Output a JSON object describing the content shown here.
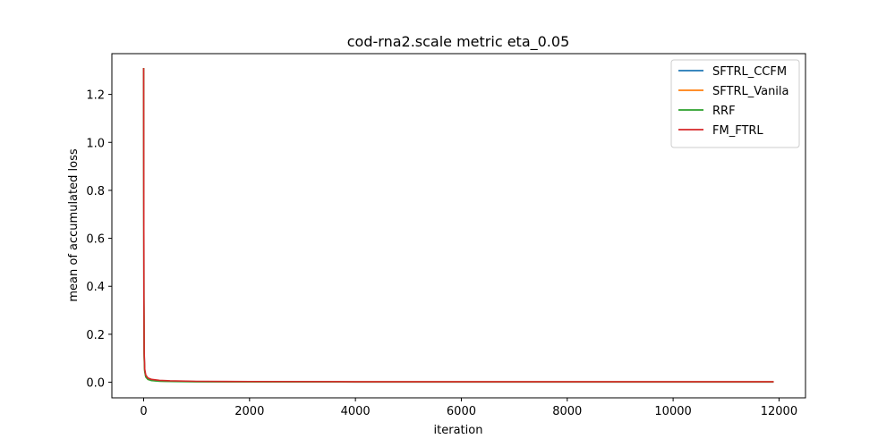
{
  "chart_data": {
    "type": "line",
    "title": "cod-rna2.scale metric eta_0.05",
    "xlabel": "iteration",
    "ylabel": "mean of accumulated loss",
    "xlim": [
      -600,
      12500
    ],
    "ylim": [
      -0.065,
      1.37
    ],
    "xticks": [
      0,
      2000,
      4000,
      6000,
      8000,
      10000,
      12000
    ],
    "yticks": [
      0.0,
      0.2,
      0.4,
      0.6,
      0.8,
      1.0,
      1.2
    ],
    "xtick_labels": [
      "0",
      "2000",
      "4000",
      "6000",
      "8000",
      "10000",
      "12000"
    ],
    "ytick_labels": [
      "0.0",
      "0.2",
      "0.4",
      "0.6",
      "0.8",
      "1.0",
      "1.2"
    ],
    "grid": false,
    "legend_position": "top-right",
    "series": [
      {
        "name": "SFTRL_CCFM",
        "color": "#1f77b4",
        "x": [
          0,
          5,
          10,
          20,
          40,
          80,
          150,
          300,
          500,
          1000,
          2000,
          4000,
          8000,
          11900
        ],
        "y": [
          1.31,
          0.35,
          0.12,
          0.05,
          0.025,
          0.013,
          0.008,
          0.005,
          0.004,
          0.003,
          0.002,
          0.002,
          0.002,
          0.002
        ]
      },
      {
        "name": "SFTRL_Vanila",
        "color": "#ff7f0e",
        "x": [
          0,
          5,
          10,
          20,
          40,
          80,
          150,
          300,
          500,
          1000,
          2000,
          4000,
          8000,
          11900
        ],
        "y": [
          1.31,
          0.34,
          0.11,
          0.048,
          0.024,
          0.012,
          0.008,
          0.005,
          0.004,
          0.003,
          0.002,
          0.002,
          0.002,
          0.002
        ]
      },
      {
        "name": "RRF",
        "color": "#2ca02c",
        "x": [
          0,
          5,
          10,
          20,
          40,
          80,
          150,
          300,
          500,
          1000,
          2000,
          4000,
          8000,
          11900
        ],
        "y": [
          1.31,
          0.33,
          0.1,
          0.045,
          0.022,
          0.012,
          0.007,
          0.004,
          0.003,
          0.002,
          0.002,
          0.001,
          0.001,
          0.001
        ]
      },
      {
        "name": "FM_FTRL",
        "color": "#d62728",
        "x": [
          0,
          5,
          10,
          20,
          40,
          80,
          150,
          300,
          500,
          1000,
          2000,
          4000,
          8000,
          11900
        ],
        "y": [
          1.31,
          0.36,
          0.13,
          0.055,
          0.03,
          0.018,
          0.012,
          0.008,
          0.006,
          0.004,
          0.003,
          0.002,
          0.002,
          0.002
        ]
      }
    ]
  }
}
